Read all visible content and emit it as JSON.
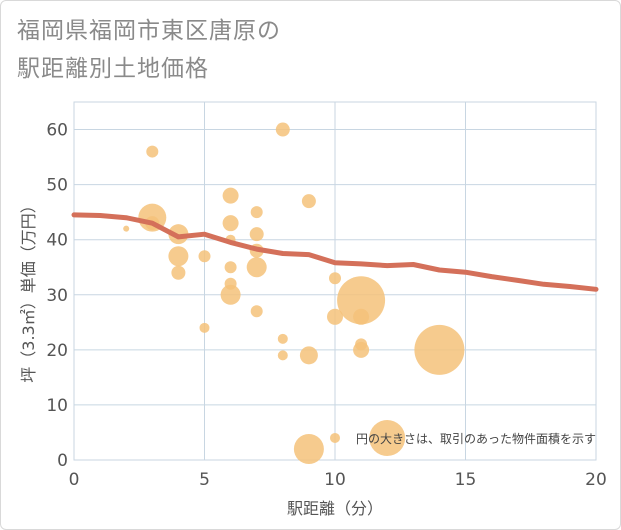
{
  "chart_data": {
    "type": "scatter",
    "title_lines": [
      "福岡県福岡市東区唐原の",
      "駅距離別土地価格"
    ],
    "xlabel": "駅距離（分）",
    "ylabel": "坪（3.3㎡）単価（万円）",
    "xlim": [
      0,
      20
    ],
    "ylim": [
      0,
      65
    ],
    "xticks": [
      0,
      5,
      10,
      15,
      20
    ],
    "yticks": [
      0,
      10,
      20,
      30,
      40,
      50,
      60
    ],
    "grid": true,
    "note": "円の大きさは、取引のあった物件面積を示す",
    "colors": {
      "bubble": "#f5c27a",
      "trend": "#d4705a",
      "grid": "#c8d6e2"
    },
    "points": [
      {
        "x": 2,
        "y": 42,
        "size": 3
      },
      {
        "x": 3,
        "y": 56,
        "size": 6
      },
      {
        "x": 3,
        "y": 44,
        "size": 14
      },
      {
        "x": 3,
        "y": 43,
        "size": 7
      },
      {
        "x": 4,
        "y": 41,
        "size": 10
      },
      {
        "x": 4,
        "y": 37,
        "size": 10
      },
      {
        "x": 4,
        "y": 34,
        "size": 7
      },
      {
        "x": 5,
        "y": 37,
        "size": 6
      },
      {
        "x": 5,
        "y": 24,
        "size": 5
      },
      {
        "x": 6,
        "y": 48,
        "size": 8
      },
      {
        "x": 6,
        "y": 43,
        "size": 8
      },
      {
        "x": 6,
        "y": 40,
        "size": 5
      },
      {
        "x": 6,
        "y": 35,
        "size": 6
      },
      {
        "x": 6,
        "y": 32,
        "size": 6
      },
      {
        "x": 6,
        "y": 30,
        "size": 10
      },
      {
        "x": 7,
        "y": 45,
        "size": 6
      },
      {
        "x": 7,
        "y": 41,
        "size": 7
      },
      {
        "x": 7,
        "y": 38,
        "size": 7
      },
      {
        "x": 7,
        "y": 35,
        "size": 10
      },
      {
        "x": 7,
        "y": 27,
        "size": 6
      },
      {
        "x": 8,
        "y": 60,
        "size": 7
      },
      {
        "x": 8,
        "y": 22,
        "size": 5
      },
      {
        "x": 8,
        "y": 19,
        "size": 5
      },
      {
        "x": 9,
        "y": 47,
        "size": 7
      },
      {
        "x": 9,
        "y": 19,
        "size": 9
      },
      {
        "x": 9,
        "y": 2,
        "size": 15
      },
      {
        "x": 10,
        "y": 33,
        "size": 6
      },
      {
        "x": 10,
        "y": 26,
        "size": 8
      },
      {
        "x": 10,
        "y": 4,
        "size": 5
      },
      {
        "x": 11,
        "y": 29,
        "size": 24
      },
      {
        "x": 11,
        "y": 26,
        "size": 8
      },
      {
        "x": 11,
        "y": 21,
        "size": 6
      },
      {
        "x": 11,
        "y": 20,
        "size": 8
      },
      {
        "x": 12,
        "y": 4,
        "size": 18
      },
      {
        "x": 14,
        "y": 20,
        "size": 25
      }
    ],
    "trend": {
      "x": [
        0,
        1,
        2,
        3,
        4,
        5,
        6,
        7,
        8,
        9,
        10,
        11,
        12,
        13,
        14,
        15,
        16,
        17,
        18,
        19,
        20
      ],
      "y": [
        44.5,
        44.4,
        44.0,
        43.0,
        40.5,
        41.0,
        39.5,
        38.3,
        37.5,
        37.3,
        35.8,
        35.6,
        35.3,
        35.5,
        34.5,
        34.1,
        33.3,
        32.6,
        31.9,
        31.5,
        31.0
      ]
    }
  }
}
